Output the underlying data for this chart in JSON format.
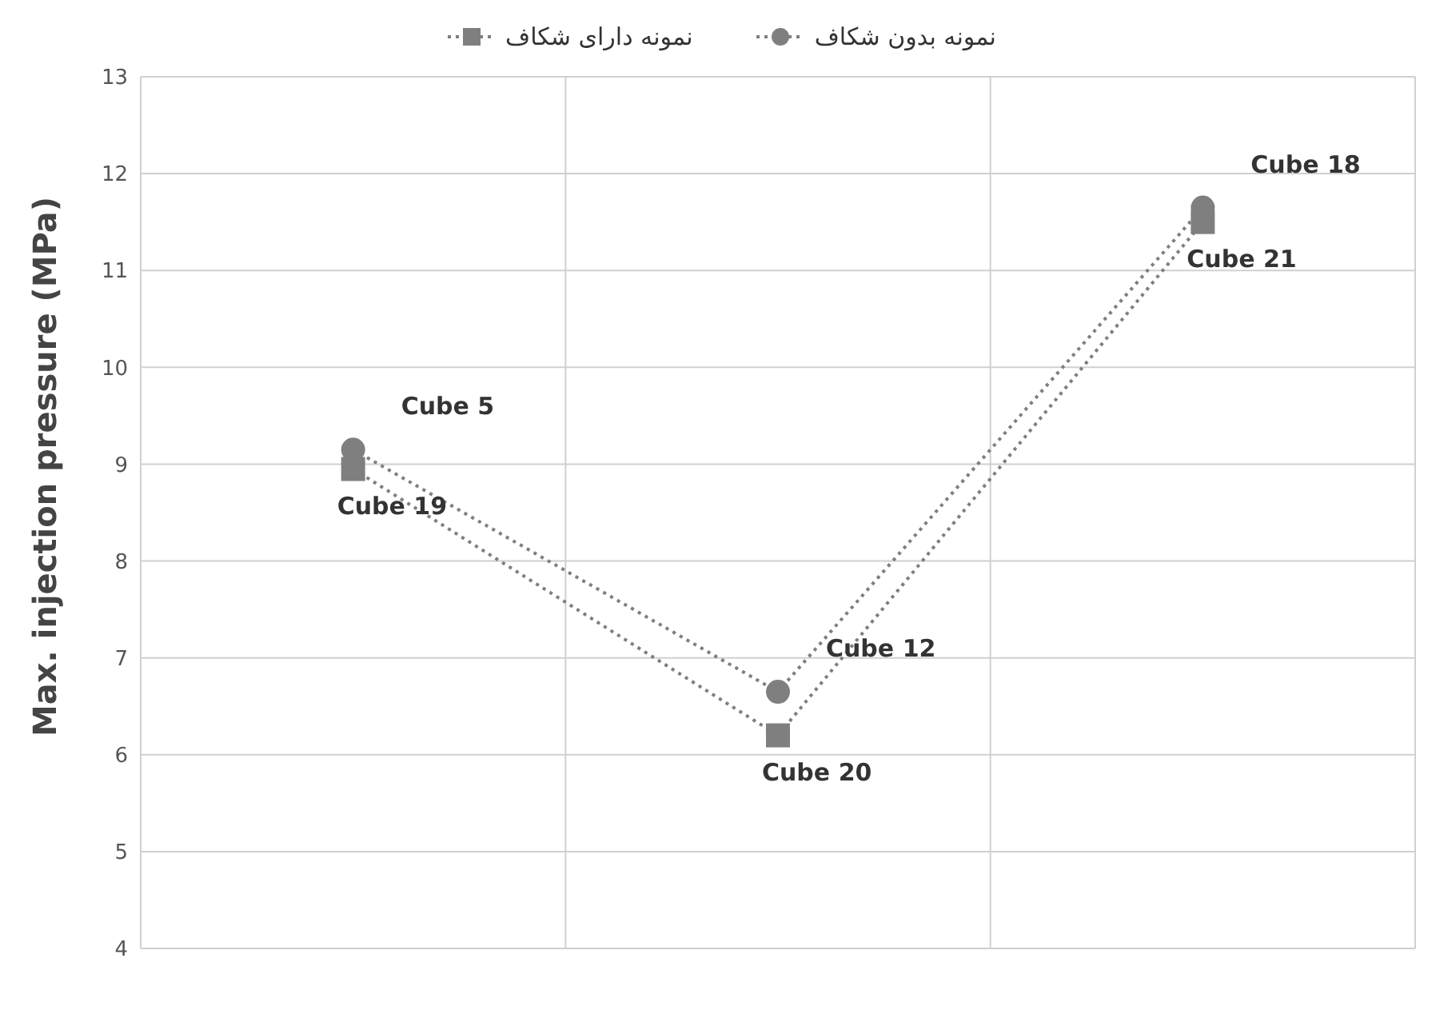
{
  "chart_data": {
    "type": "line",
    "ylabel": "Max. injection pressure (MPa)",
    "categories": [
      null,
      null,
      null
    ],
    "series": [
      {
        "name": "نمونه بدون شکاف",
        "color": "#7f7f7f",
        "marker": "circle",
        "line_style": "dotted",
        "values": [
          9.15,
          6.65,
          11.65
        ],
        "value_labels": [
          "Cube 5",
          "Cube 12",
          "Cube 18"
        ]
      },
      {
        "name": "نمونه دارای شکاف",
        "color": "#7f7f7f",
        "marker": "square",
        "line_style": "dotted",
        "values": [
          8.95,
          6.2,
          11.5
        ],
        "value_labels": [
          "Cube 19",
          "Cube 20",
          "Cube 21"
        ]
      }
    ],
    "ylim": [
      4,
      13
    ],
    "yticks": [
      4,
      5,
      6,
      7,
      8,
      9,
      10,
      11,
      12,
      13
    ],
    "grid": true,
    "legend": "top"
  }
}
